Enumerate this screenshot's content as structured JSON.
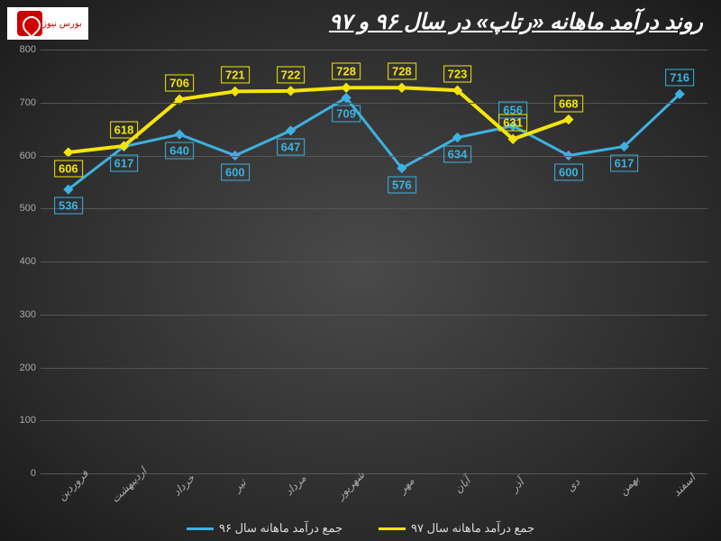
{
  "logo_text": "بورس نیوز",
  "title": "روند درآمد ماهانه «رتاپ» در سال ۹۶ و ۹۷",
  "chart": {
    "type": "line",
    "ylim": [
      0,
      800
    ],
    "ytick_step": 100,
    "yticks": [
      0,
      100,
      200,
      300,
      400,
      500,
      600,
      700,
      800
    ],
    "grid_color": "#555555",
    "background": "radial-gradient",
    "axis_label_color": "#aaaaaa",
    "axis_fontsize": 11,
    "categories": [
      "فروردین",
      "اردیبهشت",
      "خرداد",
      "تیر",
      "مرداد",
      "شهریور",
      "مهر",
      "آبان",
      "آذر",
      "دی",
      "بهمن",
      "اسفند"
    ],
    "series": [
      {
        "name": "جمع درآمد ماهانه سال ۹۶",
        "color": "#3db1e0",
        "line_width": 3,
        "marker": "diamond",
        "label_border": "#3db1e0",
        "values": [
          536,
          617,
          640,
          600,
          647,
          709,
          576,
          634,
          656,
          600,
          617,
          716
        ]
      },
      {
        "name": "جمع درآمد ماهانه سال ۹۷",
        "color": "#f5e40c",
        "line_width": 4,
        "marker": "diamond",
        "label_border": "#f5e40c",
        "values": [
          606,
          618,
          706,
          721,
          722,
          728,
          728,
          723,
          631,
          668
        ]
      }
    ],
    "label_offsets_series0": [
      "below",
      "below",
      "below",
      "below",
      "below",
      "below",
      "below",
      "below",
      "above",
      "below",
      "below",
      "above"
    ],
    "label_offsets_series1": [
      "below",
      "above",
      "above",
      "above",
      "above",
      "above",
      "above",
      "above",
      "above",
      "above"
    ]
  },
  "legend": {
    "items": [
      {
        "label": "جمع درآمد ماهانه سال ۹۶",
        "color": "#3db1e0"
      },
      {
        "label": "جمع درآمد ماهانه سال ۹۷",
        "color": "#f5e40c"
      }
    ]
  }
}
